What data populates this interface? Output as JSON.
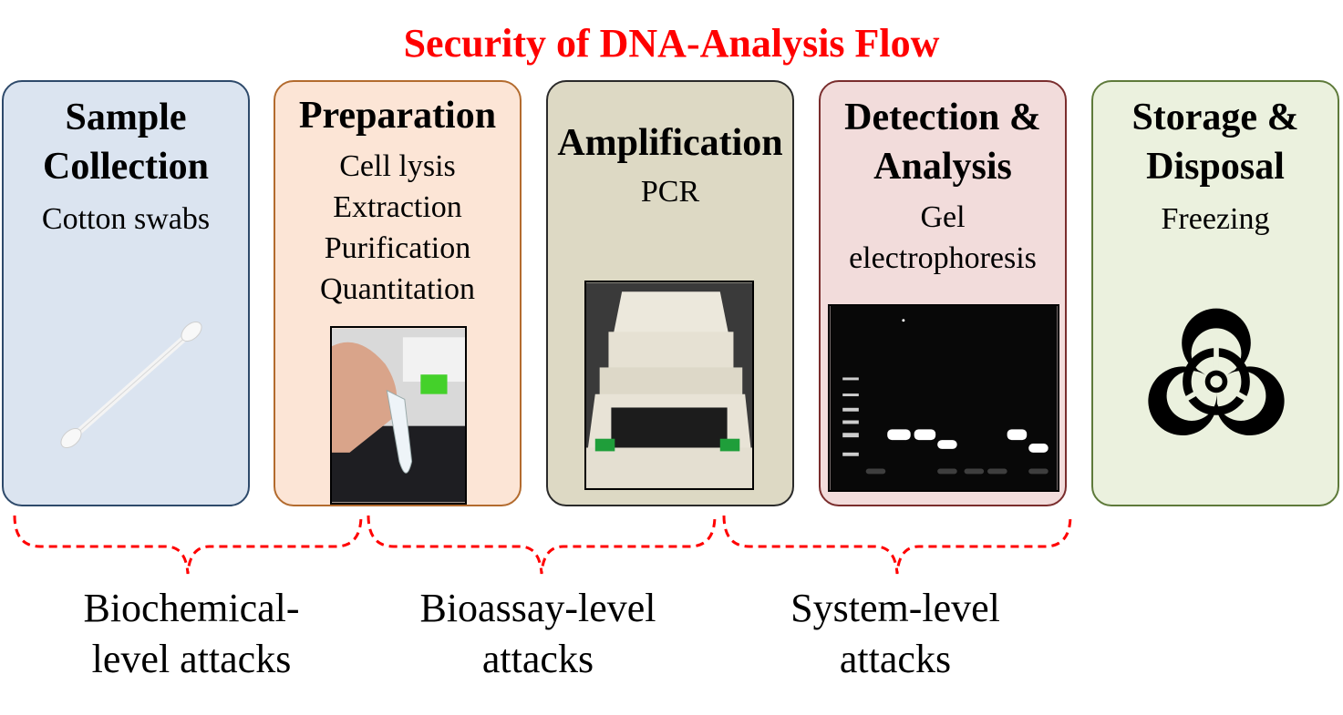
{
  "title": "Security of DNA-Analysis Flow",
  "colors": {
    "title": "#ff0000",
    "bracket": "#ff0000"
  },
  "stages": [
    {
      "title_lines": [
        "Sample",
        "Collection"
      ],
      "details": [
        "Cotton swabs"
      ],
      "image": "cotton-swab-icon",
      "fill": "#dbe4f0",
      "border": "#2e4a6b"
    },
    {
      "title_lines": [
        "Preparation"
      ],
      "details": [
        "Cell lysis",
        "Extraction",
        "Purification",
        "Quantitation"
      ],
      "image": "tube-photo",
      "fill": "#fce5d6",
      "border": "#b36b2e"
    },
    {
      "title_lines": [
        "Amplification"
      ],
      "details": [
        "PCR"
      ],
      "image": "pcr-machine-photo",
      "fill": "#ddd9c4",
      "border": "#2a2a2a"
    },
    {
      "title_lines": [
        "Detection &",
        "Analysis"
      ],
      "details": [
        "Gel",
        "electrophoresis"
      ],
      "image": "gel-photo",
      "fill": "#f2dcdb",
      "border": "#7a2d2d"
    },
    {
      "title_lines": [
        "Storage &",
        "Disposal"
      ],
      "details": [
        "Freezing"
      ],
      "image": "biohazard-icon",
      "fill": "#ebf1de",
      "border": "#5e7a3a"
    }
  ],
  "attacks": [
    {
      "lines": [
        "Biochemical-",
        "level attacks"
      ]
    },
    {
      "lines": [
        "Bioassay-level",
        "attacks"
      ]
    },
    {
      "lines": [
        "System-level",
        "attacks"
      ]
    }
  ]
}
